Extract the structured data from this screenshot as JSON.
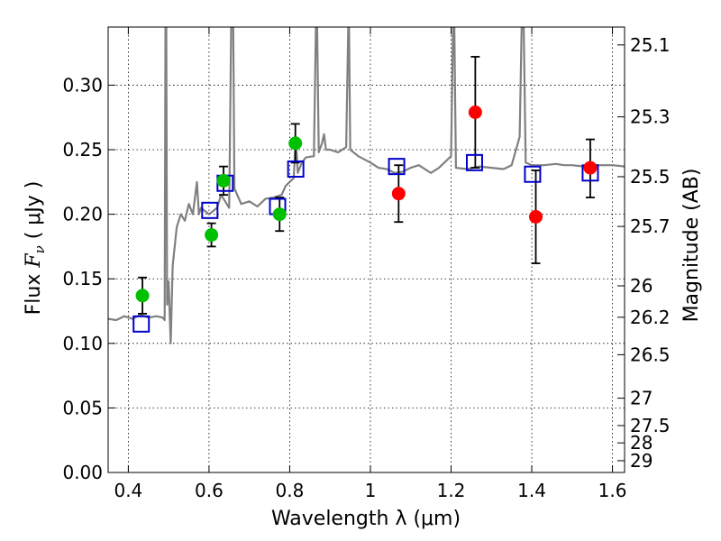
{
  "chart_data": {
    "type": "scatter",
    "xlabel": "Wavelength  λ (μm)",
    "ylabel": "Flux  F_ν  ( μJy )",
    "ylabel_parts": {
      "prefix": "Flux  ",
      "symbol": "F",
      "sub": "ν",
      "suffix": "  ( μJy )"
    },
    "y2label": "Magnitude (AB)",
    "xlim": [
      0.35,
      1.63
    ],
    "ylim": [
      0.0,
      0.345
    ],
    "x_ticks": [
      0.4,
      0.6,
      0.8,
      1.0,
      1.2,
      1.4,
      1.6
    ],
    "x_tick_labels": [
      "0.4",
      "0.6",
      "0.8",
      "1",
      "1.2",
      "1.4",
      "1.6"
    ],
    "y_ticks": [
      0.0,
      0.05,
      0.1,
      0.15,
      0.2,
      0.25,
      0.3
    ],
    "y_tick_labels": [
      "0.00",
      "0.05",
      "0.10",
      "0.15",
      "0.20",
      "0.25",
      "0.30"
    ],
    "mag_ticks": [
      25.1,
      25.3,
      25.5,
      25.7,
      26,
      26.2,
      26.5,
      27,
      27.5,
      28,
      29
    ],
    "mag_tick_labels": [
      "25.1",
      "25.3",
      "25.5",
      "25.7",
      "26",
      "26.2",
      "26.5",
      "27",
      "27.5",
      "28",
      "29"
    ],
    "grid": true,
    "colors": {
      "model": "#808080",
      "green": "#00c000",
      "red": "#ff0000",
      "square": "#0000cc",
      "errorbar": "#000000"
    },
    "model_spectrum": [
      [
        0.35,
        0.119
      ],
      [
        0.37,
        0.118
      ],
      [
        0.39,
        0.121
      ],
      [
        0.41,
        0.119
      ],
      [
        0.43,
        0.122
      ],
      [
        0.45,
        0.12
      ],
      [
        0.47,
        0.121
      ],
      [
        0.485,
        0.12
      ],
      [
        0.49,
        0.118
      ],
      [
        0.492,
        0.345
      ],
      [
        0.494,
        0.345
      ],
      [
        0.496,
        0.13
      ],
      [
        0.5,
        0.148
      ],
      [
        0.505,
        0.1
      ],
      [
        0.51,
        0.16
      ],
      [
        0.52,
        0.19
      ],
      [
        0.53,
        0.2
      ],
      [
        0.54,
        0.195
      ],
      [
        0.55,
        0.208
      ],
      [
        0.56,
        0.2
      ],
      [
        0.57,
        0.225
      ],
      [
        0.575,
        0.2
      ],
      [
        0.58,
        0.205
      ],
      [
        0.6,
        0.2
      ],
      [
        0.62,
        0.205
      ],
      [
        0.63,
        0.215
      ],
      [
        0.64,
        0.21
      ],
      [
        0.65,
        0.205
      ],
      [
        0.655,
        0.345
      ],
      [
        0.66,
        0.345
      ],
      [
        0.663,
        0.22
      ],
      [
        0.68,
        0.208
      ],
      [
        0.7,
        0.21
      ],
      [
        0.72,
        0.206
      ],
      [
        0.74,
        0.212
      ],
      [
        0.76,
        0.213
      ],
      [
        0.78,
        0.215
      ],
      [
        0.79,
        0.222
      ],
      [
        0.8,
        0.225
      ],
      [
        0.81,
        0.228
      ],
      [
        0.815,
        0.26
      ],
      [
        0.82,
        0.232
      ],
      [
        0.83,
        0.24
      ],
      [
        0.84,
        0.244
      ],
      [
        0.86,
        0.245
      ],
      [
        0.865,
        0.345
      ],
      [
        0.868,
        0.345
      ],
      [
        0.872,
        0.248
      ],
      [
        0.88,
        0.255
      ],
      [
        0.885,
        0.262
      ],
      [
        0.89,
        0.25
      ],
      [
        0.9,
        0.25
      ],
      [
        0.92,
        0.248
      ],
      [
        0.94,
        0.252
      ],
      [
        0.945,
        0.345
      ],
      [
        0.947,
        0.345
      ],
      [
        0.95,
        0.25
      ],
      [
        0.97,
        0.245
      ],
      [
        1.0,
        0.24
      ],
      [
        1.02,
        0.236
      ],
      [
        1.04,
        0.235
      ],
      [
        1.06,
        0.232
      ],
      [
        1.08,
        0.233
      ],
      [
        1.1,
        0.236
      ],
      [
        1.12,
        0.238
      ],
      [
        1.15,
        0.232
      ],
      [
        1.17,
        0.236
      ],
      [
        1.2,
        0.245
      ],
      [
        1.205,
        0.345
      ],
      [
        1.208,
        0.345
      ],
      [
        1.212,
        0.236
      ],
      [
        1.24,
        0.235
      ],
      [
        1.27,
        0.237
      ],
      [
        1.3,
        0.236
      ],
      [
        1.33,
        0.235
      ],
      [
        1.35,
        0.238
      ],
      [
        1.37,
        0.26
      ],
      [
        1.375,
        0.345
      ],
      [
        1.38,
        0.345
      ],
      [
        1.385,
        0.24
      ],
      [
        1.4,
        0.238
      ],
      [
        1.43,
        0.238
      ],
      [
        1.46,
        0.239
      ],
      [
        1.48,
        0.238
      ],
      [
        1.5,
        0.238
      ],
      [
        1.53,
        0.237
      ],
      [
        1.56,
        0.238
      ],
      [
        1.6,
        0.238
      ],
      [
        1.63,
        0.237
      ]
    ],
    "photometry": [
      {
        "x": 0.435,
        "y": 0.137,
        "yerr_low": 0.123,
        "yerr_high": 0.151,
        "color": "green"
      },
      {
        "x": 0.606,
        "y": 0.184,
        "yerr_low": 0.175,
        "yerr_high": 0.193,
        "color": "green"
      },
      {
        "x": 0.636,
        "y": 0.226,
        "yerr_low": 0.215,
        "yerr_high": 0.237,
        "color": "green"
      },
      {
        "x": 0.775,
        "y": 0.2,
        "yerr_low": 0.187,
        "yerr_high": 0.213,
        "color": "green"
      },
      {
        "x": 0.814,
        "y": 0.255,
        "yerr_low": 0.24,
        "yerr_high": 0.27,
        "color": "green"
      },
      {
        "x": 1.07,
        "y": 0.216,
        "yerr_low": 0.194,
        "yerr_high": 0.238,
        "color": "red"
      },
      {
        "x": 1.26,
        "y": 0.279,
        "yerr_low": 0.236,
        "yerr_high": 0.322,
        "color": "red"
      },
      {
        "x": 1.41,
        "y": 0.198,
        "yerr_low": 0.162,
        "yerr_high": 0.234,
        "color": "red"
      },
      {
        "x": 1.545,
        "y": 0.236,
        "yerr_low": 0.213,
        "yerr_high": 0.258,
        "color": "red"
      }
    ],
    "model_bandpass": [
      {
        "x": 0.432,
        "y": 0.115
      },
      {
        "x": 0.602,
        "y": 0.203
      },
      {
        "x": 0.64,
        "y": 0.224
      },
      {
        "x": 0.77,
        "y": 0.206
      },
      {
        "x": 0.815,
        "y": 0.235
      },
      {
        "x": 1.065,
        "y": 0.237
      },
      {
        "x": 1.258,
        "y": 0.24
      },
      {
        "x": 1.402,
        "y": 0.231
      },
      {
        "x": 1.545,
        "y": 0.232
      }
    ]
  }
}
